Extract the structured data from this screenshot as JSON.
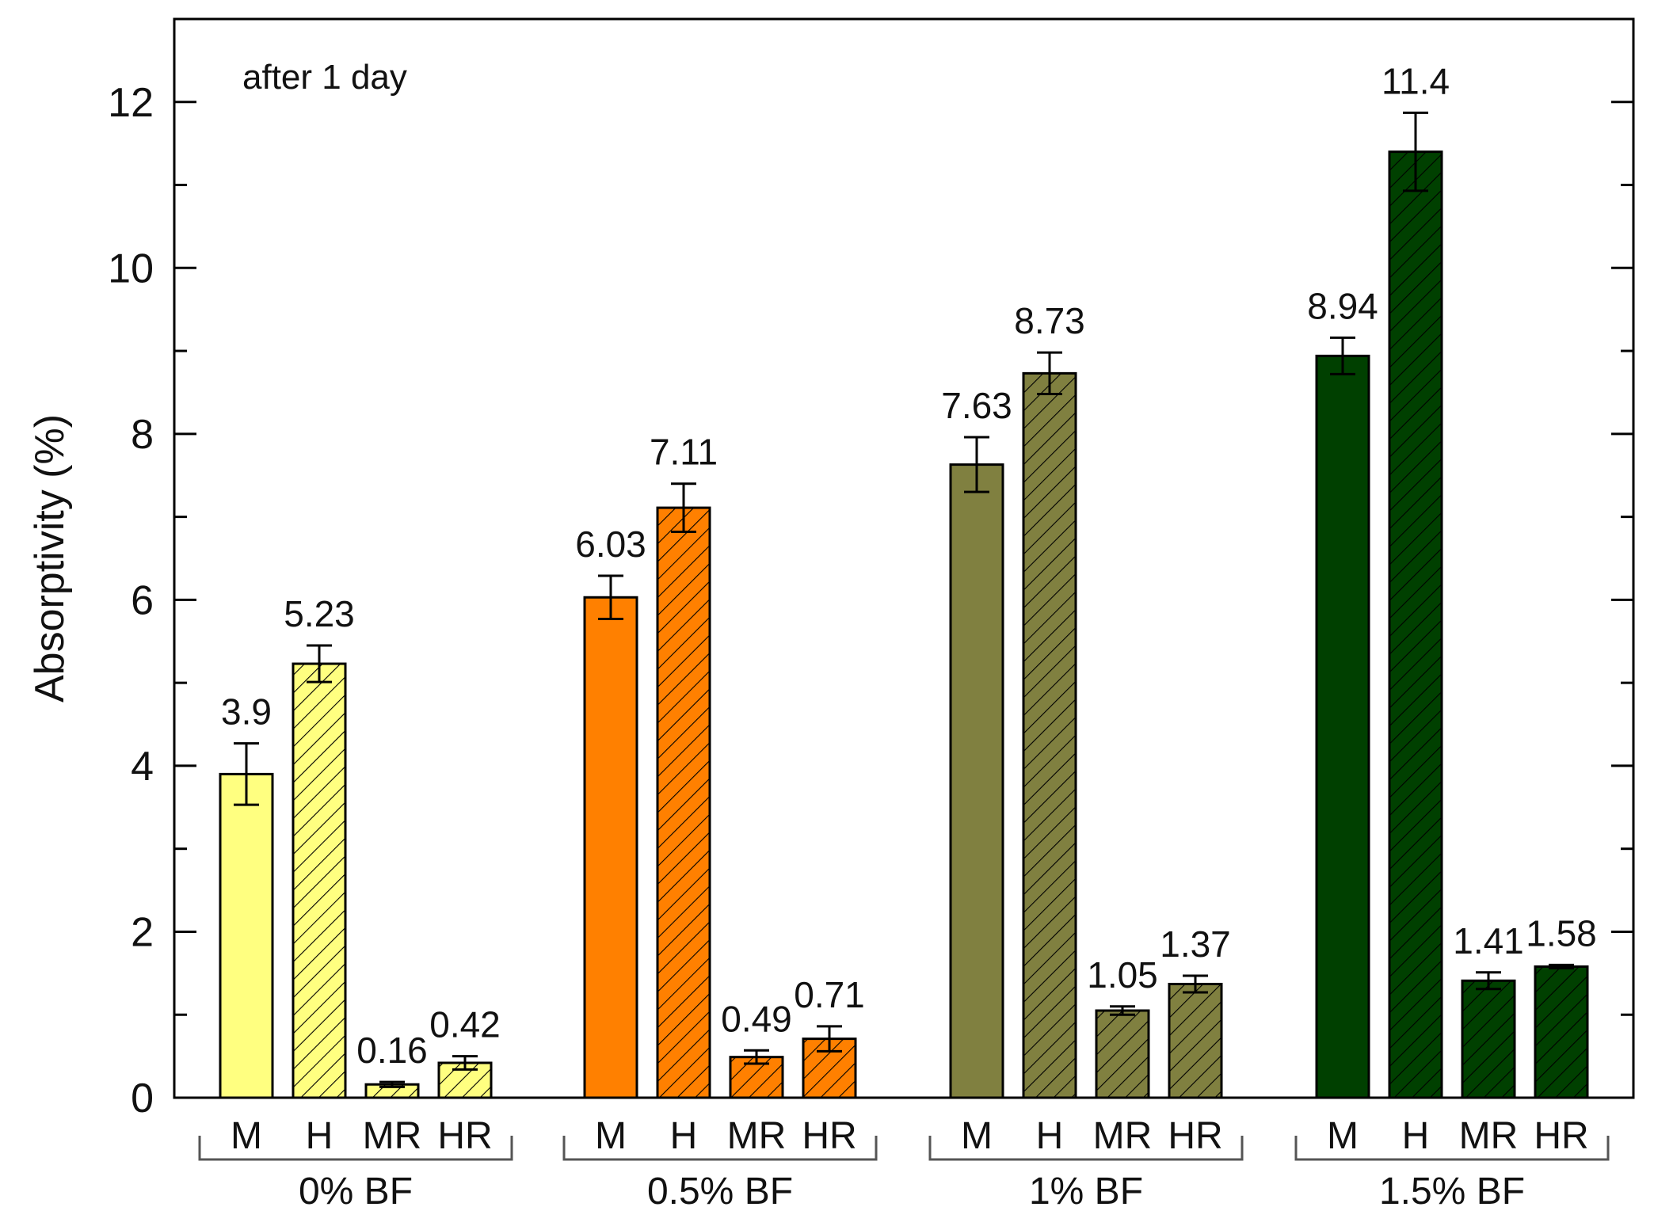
{
  "chart_data": {
    "type": "bar",
    "annotation": "after 1 day",
    "ylabel": "Absorptivity (%)",
    "xlabel": "",
    "ylim": [
      0,
      13
    ],
    "yticks": [
      0,
      2,
      4,
      6,
      8,
      10,
      12
    ],
    "grid": false,
    "groups": [
      {
        "name": "0% BF",
        "color": "#FFFF80",
        "bars": [
          {
            "label": "M",
            "value": 3.9,
            "error": 0.37,
            "value_label": "3.9",
            "hatched": false
          },
          {
            "label": "H",
            "value": 5.23,
            "error": 0.22,
            "value_label": "5.23",
            "hatched": true
          },
          {
            "label": "MR",
            "value": 0.16,
            "error": 0.03,
            "value_label": "0.16",
            "hatched": true
          },
          {
            "label": "HR",
            "value": 0.42,
            "error": 0.08,
            "value_label": "0.42",
            "hatched": true
          }
        ]
      },
      {
        "name": "0.5% BF",
        "color": "#FF8000",
        "bars": [
          {
            "label": "M",
            "value": 6.03,
            "error": 0.26,
            "value_label": "6.03",
            "hatched": false
          },
          {
            "label": "H",
            "value": 7.11,
            "error": 0.29,
            "value_label": "7.11",
            "hatched": true
          },
          {
            "label": "MR",
            "value": 0.49,
            "error": 0.08,
            "value_label": "0.49",
            "hatched": true
          },
          {
            "label": "HR",
            "value": 0.71,
            "error": 0.15,
            "value_label": "0.71",
            "hatched": true
          }
        ]
      },
      {
        "name": "1% BF",
        "color": "#808040",
        "bars": [
          {
            "label": "M",
            "value": 7.63,
            "error": 0.33,
            "value_label": "7.63",
            "hatched": false
          },
          {
            "label": "H",
            "value": 8.73,
            "error": 0.25,
            "value_label": "8.73",
            "hatched": true
          },
          {
            "label": "MR",
            "value": 1.05,
            "error": 0.05,
            "value_label": "1.05",
            "hatched": true
          },
          {
            "label": "HR",
            "value": 1.37,
            "error": 0.1,
            "value_label": "1.37",
            "hatched": true
          }
        ]
      },
      {
        "name": "1.5% BF",
        "color": "#004000",
        "bars": [
          {
            "label": "M",
            "value": 8.94,
            "error": 0.22,
            "value_label": "8.94",
            "hatched": false
          },
          {
            "label": "H",
            "value": 11.4,
            "error": 0.47,
            "value_label": "11.4",
            "hatched": true
          },
          {
            "label": "MR",
            "value": 1.41,
            "error": 0.1,
            "value_label": "1.41",
            "hatched": true
          },
          {
            "label": "HR",
            "value": 1.58,
            "error": 0.02,
            "value_label": "1.58",
            "hatched": true
          }
        ]
      }
    ]
  }
}
